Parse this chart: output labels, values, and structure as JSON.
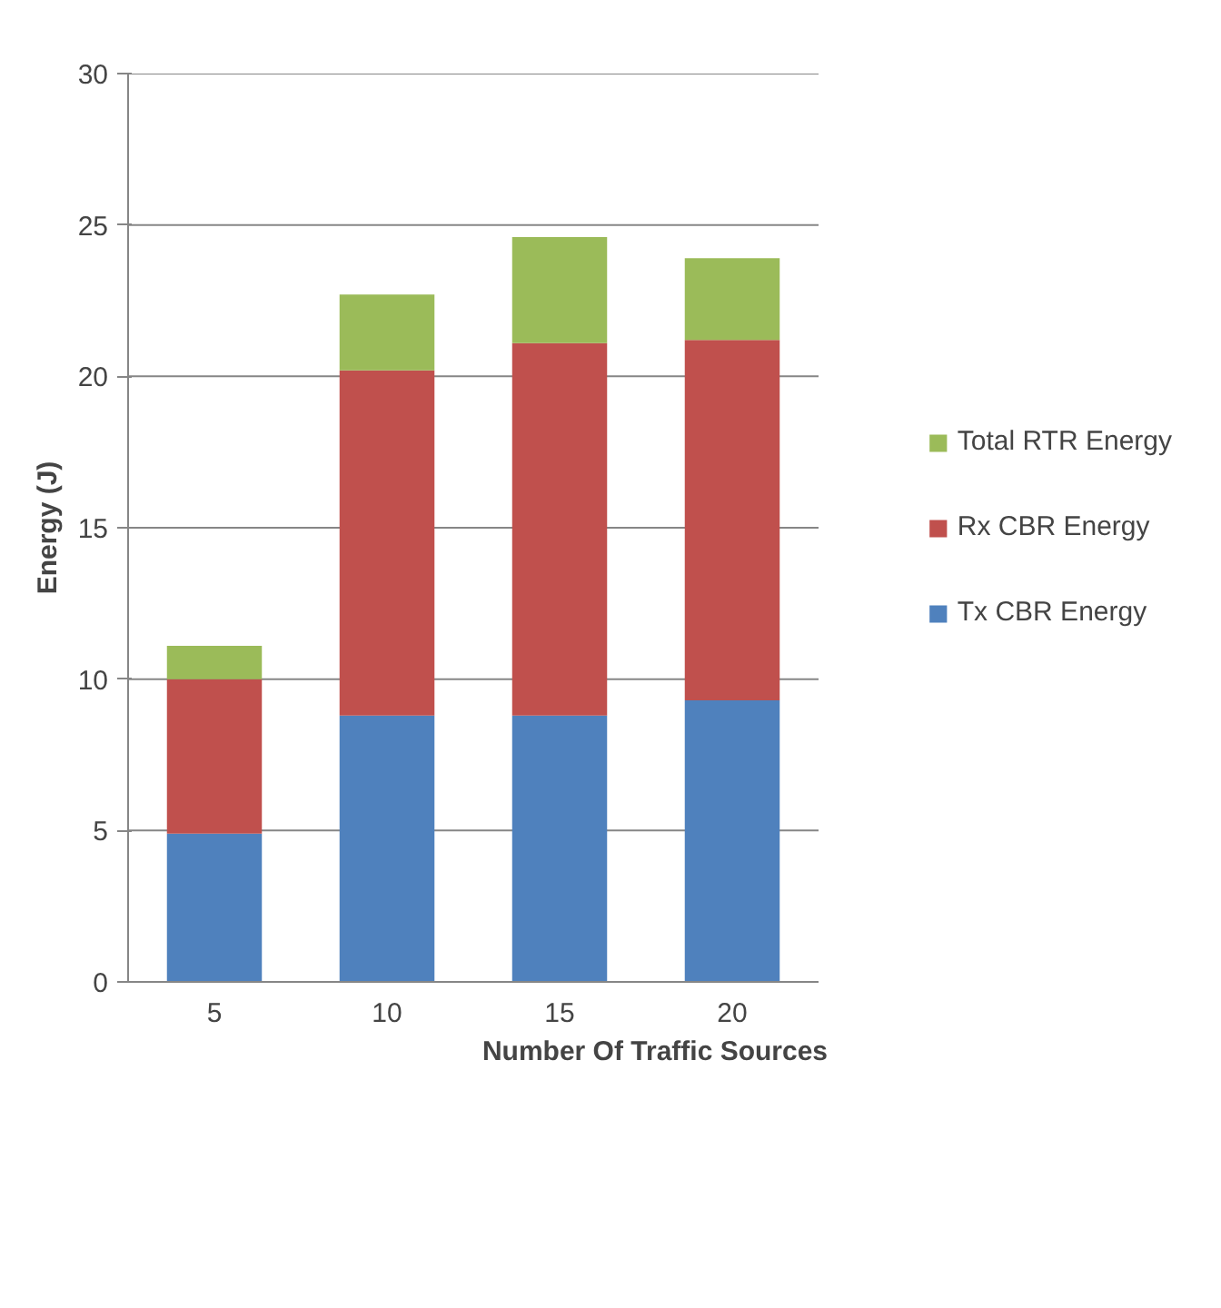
{
  "chart_data": {
    "type": "bar",
    "stacked": true,
    "xlabel": "Number Of Traffic Sources",
    "ylabel": "Energy (J)",
    "categories": [
      "5",
      "10",
      "15",
      "20"
    ],
    "series": [
      {
        "name": "Tx CBR Energy",
        "color": "#4f81bd",
        "values": [
          4.9,
          8.8,
          8.8,
          9.3
        ]
      },
      {
        "name": "Rx CBR Energy",
        "color": "#c0504d",
        "values": [
          5.1,
          11.4,
          12.3,
          11.9
        ]
      },
      {
        "name": "Total RTR Energy",
        "color": "#9bbb59",
        "values": [
          1.1,
          2.5,
          3.5,
          2.7
        ]
      }
    ],
    "ylim": [
      0,
      30
    ],
    "yticks": [
      0,
      5,
      10,
      15,
      20,
      25,
      30
    ],
    "grid": "y",
    "legend": "right"
  }
}
